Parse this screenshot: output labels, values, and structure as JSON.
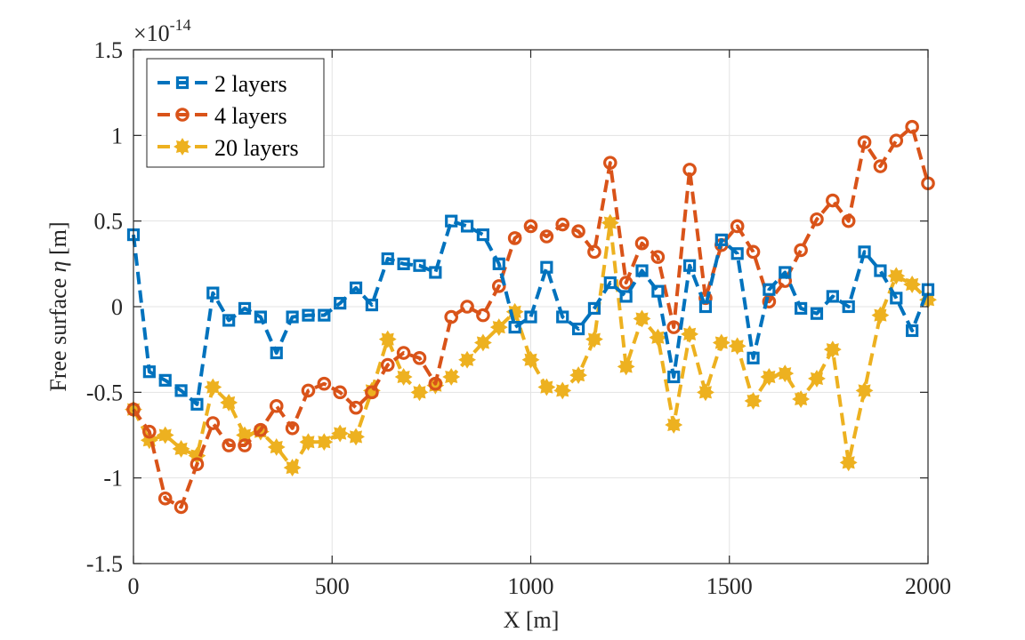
{
  "chart_data": {
    "type": "line",
    "title": "",
    "xlabel": "X [m]",
    "ylabel_prefix": "Free surface ",
    "ylabel_symbol": "η",
    "ylabel_suffix": " [m]",
    "exponent_base": "×10",
    "exponent_power": "-14",
    "xlim": [
      0,
      2000
    ],
    "ylim": [
      -1.5,
      1.5
    ],
    "xticks": [
      0,
      500,
      1000,
      1500,
      2000
    ],
    "xtick_labels": [
      "0",
      "500",
      "1000",
      "1500",
      "2000"
    ],
    "yticks": [
      -1.5,
      -1,
      -0.5,
      0,
      0.5,
      1,
      1.5
    ],
    "ytick_labels": [
      "-1.5",
      "-1",
      "-0.5",
      "0",
      "0.5",
      "1",
      "1.5"
    ],
    "grid": true,
    "legend_position": "top-left",
    "x": [
      0,
      40,
      80,
      120,
      160,
      200,
      240,
      280,
      320,
      360,
      400,
      440,
      480,
      520,
      560,
      600,
      640,
      680,
      720,
      760,
      800,
      840,
      880,
      920,
      960,
      1000,
      1040,
      1080,
      1120,
      1160,
      1200,
      1240,
      1280,
      1320,
      1360,
      1400,
      1440,
      1480,
      1520,
      1560,
      1600,
      1640,
      1680,
      1720,
      1760,
      1800,
      1840,
      1880,
      1920,
      1960,
      2000
    ],
    "series": [
      {
        "name": "2 layers",
        "color": "#0072BD",
        "marker": "square",
        "values": [
          0.42,
          -0.38,
          -0.43,
          -0.49,
          -0.57,
          0.08,
          -0.08,
          -0.01,
          -0.06,
          -0.27,
          -0.06,
          -0.05,
          -0.05,
          0.02,
          0.11,
          0.01,
          0.28,
          0.25,
          0.24,
          0.2,
          0.5,
          0.47,
          0.42,
          0.25,
          -0.12,
          -0.06,
          0.23,
          -0.06,
          -0.13,
          -0.01,
          0.14,
          0.06,
          0.21,
          0.09,
          -0.41,
          0.24,
          0.0,
          0.39,
          0.31,
          -0.3,
          0.1,
          0.2,
          -0.01,
          -0.04,
          0.06,
          0.0,
          0.32,
          0.21,
          0.05,
          -0.14,
          0.1
        ]
      },
      {
        "name": "4 layers",
        "color": "#D95319",
        "marker": "circle",
        "values": [
          -0.6,
          -0.73,
          -1.12,
          -1.17,
          -0.92,
          -0.68,
          -0.81,
          -0.81,
          -0.72,
          -0.58,
          -0.71,
          -0.49,
          -0.45,
          -0.5,
          -0.59,
          -0.5,
          -0.34,
          -0.27,
          -0.3,
          -0.45,
          -0.06,
          0.0,
          -0.05,
          0.12,
          0.4,
          0.47,
          0.41,
          0.48,
          0.44,
          0.32,
          0.84,
          0.14,
          0.37,
          0.29,
          -0.12,
          0.8,
          0.05,
          0.36,
          0.47,
          0.32,
          0.03,
          0.15,
          0.33,
          0.51,
          0.62,
          0.5,
          0.96,
          0.82,
          0.97,
          1.05,
          0.72
        ]
      },
      {
        "name": "20 layers",
        "color": "#EDB120",
        "marker": "star",
        "values": [
          -0.6,
          -0.78,
          -0.75,
          -0.83,
          -0.87,
          -0.47,
          -0.56,
          -0.75,
          -0.73,
          -0.82,
          -0.94,
          -0.79,
          -0.79,
          -0.74,
          -0.76,
          -0.49,
          -0.19,
          -0.41,
          -0.5,
          -0.46,
          -0.41,
          -0.31,
          -0.21,
          -0.12,
          -0.03,
          -0.31,
          -0.47,
          -0.49,
          -0.4,
          -0.19,
          0.49,
          -0.35,
          -0.07,
          -0.18,
          -0.69,
          -0.16,
          -0.5,
          -0.21,
          -0.23,
          -0.55,
          -0.41,
          -0.39,
          -0.54,
          -0.42,
          -0.25,
          -0.91,
          -0.49,
          -0.05,
          0.18,
          0.13,
          0.04
        ]
      }
    ]
  }
}
